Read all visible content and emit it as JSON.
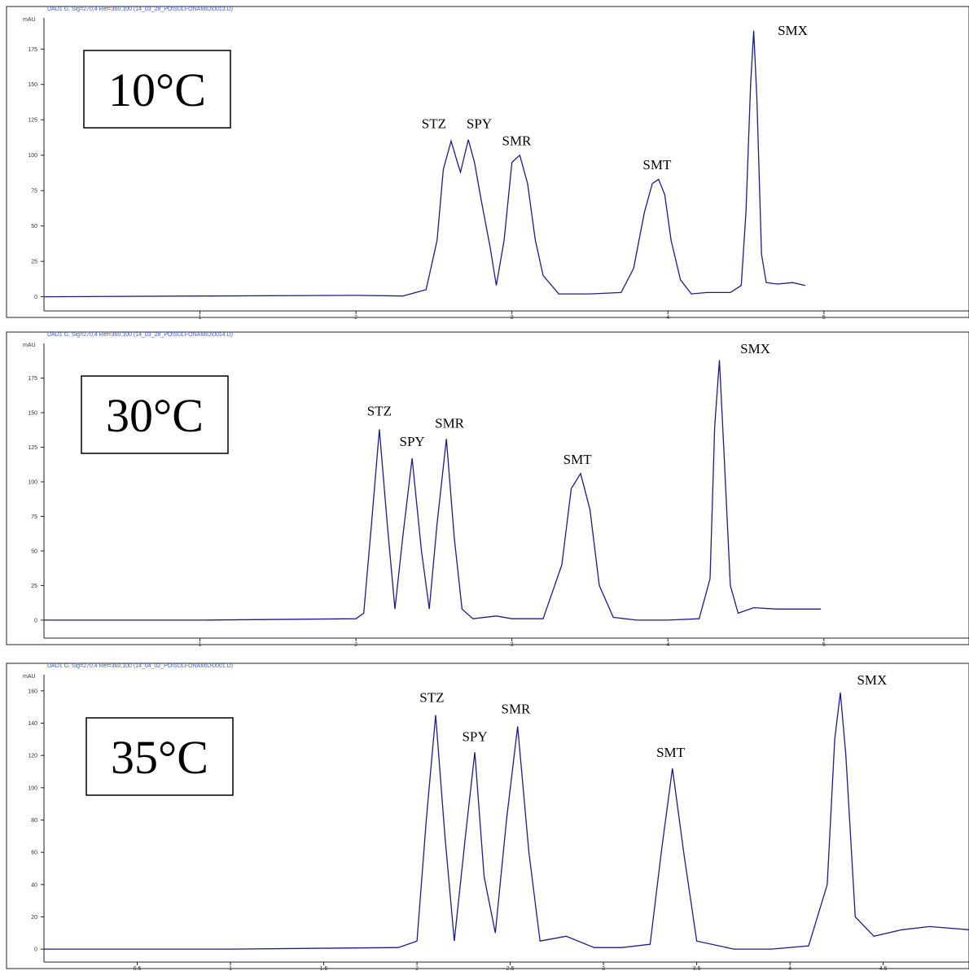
{
  "chart_data": [
    {
      "type": "line",
      "header": "DAD1 G, Sig=270,4 Ref=360,100 (14_03_28_PO\\SULFONAMID\\0013.D)",
      "y_unit": "mAU",
      "label": "10°C",
      "xlim": [
        0,
        5.93
      ],
      "xticks": [
        1,
        2,
        3,
        4,
        5
      ],
      "ylim": [
        -10,
        197
      ],
      "yticks": [
        0,
        25,
        50,
        75,
        100,
        125,
        150,
        175
      ],
      "x": [
        0,
        1,
        2,
        2.3,
        2.45,
        2.52,
        2.56,
        2.61,
        2.65,
        2.67,
        2.72,
        2.76,
        2.8,
        2.86,
        2.9,
        2.95,
        3.0,
        3.05,
        3.1,
        3.15,
        3.2,
        3.3,
        3.5,
        3.7,
        3.78,
        3.85,
        3.9,
        3.94,
        3.98,
        4.02,
        4.08,
        4.15,
        4.25,
        4.4,
        4.47,
        4.5,
        4.53,
        4.55,
        4.57,
        4.6,
        4.63,
        4.7,
        4.8,
        4.88
      ],
      "values": [
        0,
        0.5,
        1,
        0.5,
        5,
        40,
        90,
        110,
        95,
        88,
        111,
        95,
        70,
        35,
        8,
        40,
        95,
        100,
        80,
        40,
        15,
        2,
        2,
        3,
        20,
        60,
        80,
        83,
        72,
        40,
        12,
        2,
        3,
        3,
        8,
        60,
        150,
        188,
        140,
        30,
        10,
        9,
        10,
        8
      ],
      "color": "#1c1c8a",
      "annotations": [
        {
          "text": "STZ",
          "x": 2.5,
          "y": 119
        },
        {
          "text": "SPY",
          "x": 2.79,
          "y": 119
        },
        {
          "text": "SMR",
          "x": 3.03,
          "y": 107
        },
        {
          "text": "SMT",
          "x": 3.93,
          "y": 90
        },
        {
          "text": "SMX",
          "x": 4.8,
          "y": 185
        }
      ]
    },
    {
      "type": "line",
      "header": "DAD1 G, Sig=270,4 Ref=360,100 (14_03_28_PO\\SULFONAMID\\0014.D)",
      "y_unit": "mAU",
      "label": "30°C",
      "xlim": [
        0,
        5.93
      ],
      "xticks": [
        1,
        2,
        3,
        4,
        5
      ],
      "ylim": [
        -13,
        200
      ],
      "yticks": [
        0,
        25,
        50,
        75,
        100,
        125,
        150,
        175
      ],
      "x": [
        0,
        1,
        2,
        2.05,
        2.1,
        2.15,
        2.2,
        2.25,
        2.3,
        2.36,
        2.42,
        2.47,
        2.52,
        2.58,
        2.63,
        2.68,
        2.75,
        2.9,
        3.0,
        3.2,
        3.32,
        3.38,
        3.44,
        3.5,
        3.56,
        3.65,
        3.8,
        4.0,
        4.2,
        4.27,
        4.3,
        4.33,
        4.36,
        4.4,
        4.45,
        4.55,
        4.7,
        4.85,
        4.98
      ],
      "values": [
        0,
        0,
        1,
        5,
        70,
        138,
        70,
        8,
        60,
        117,
        50,
        8,
        70,
        131,
        60,
        8,
        1,
        3,
        1,
        1,
        40,
        95,
        106,
        80,
        25,
        2,
        0,
        0,
        1,
        30,
        140,
        188,
        120,
        25,
        5,
        9,
        8,
        8,
        8
      ],
      "color": "#1c1c8a",
      "annotations": [
        {
          "text": "STZ",
          "x": 2.15,
          "y": 148
        },
        {
          "text": "SPY",
          "x": 2.36,
          "y": 126
        },
        {
          "text": "SMR",
          "x": 2.6,
          "y": 139
        },
        {
          "text": "SMT",
          "x": 3.42,
          "y": 113
        },
        {
          "text": "SMX",
          "x": 4.56,
          "y": 193
        }
      ]
    },
    {
      "type": "line",
      "header": "DAD1 G, Sig=270,4 Ref=360,100 (14_04_02_PO\\SULFONAMID\\0001.D)",
      "y_unit": "mAU",
      "label": "35°C",
      "xlim": [
        0,
        4.96
      ],
      "xticks": [
        0.5,
        1,
        1.5,
        2,
        2.5,
        3,
        3.5,
        4,
        4.5
      ],
      "ylim": [
        -8,
        170
      ],
      "yticks": [
        0,
        20,
        40,
        60,
        80,
        100,
        120,
        140,
        160
      ],
      "x": [
        0,
        1,
        1.9,
        2.0,
        2.05,
        2.1,
        2.15,
        2.2,
        2.26,
        2.31,
        2.36,
        2.42,
        2.48,
        2.54,
        2.6,
        2.66,
        2.8,
        2.95,
        3.1,
        3.25,
        3.31,
        3.37,
        3.43,
        3.5,
        3.7,
        3.9,
        4.1,
        4.2,
        4.24,
        4.27,
        4.3,
        4.35,
        4.45,
        4.6,
        4.75,
        4.96
      ],
      "values": [
        0,
        0,
        1,
        5,
        80,
        145,
        70,
        5,
        70,
        122,
        45,
        10,
        80,
        138,
        60,
        5,
        8,
        1,
        1,
        3,
        60,
        112,
        60,
        5,
        0,
        0,
        2,
        40,
        130,
        159,
        120,
        20,
        8,
        12,
        14,
        12
      ],
      "color": "#1c1c8a",
      "annotations": [
        {
          "text": "STZ",
          "x": 2.08,
          "y": 153
        },
        {
          "text": "SPY",
          "x": 2.31,
          "y": 129
        },
        {
          "text": "SMR",
          "x": 2.53,
          "y": 146
        },
        {
          "text": "SMT",
          "x": 3.36,
          "y": 119
        },
        {
          "text": "SMX",
          "x": 4.44,
          "y": 164
        }
      ]
    }
  ]
}
